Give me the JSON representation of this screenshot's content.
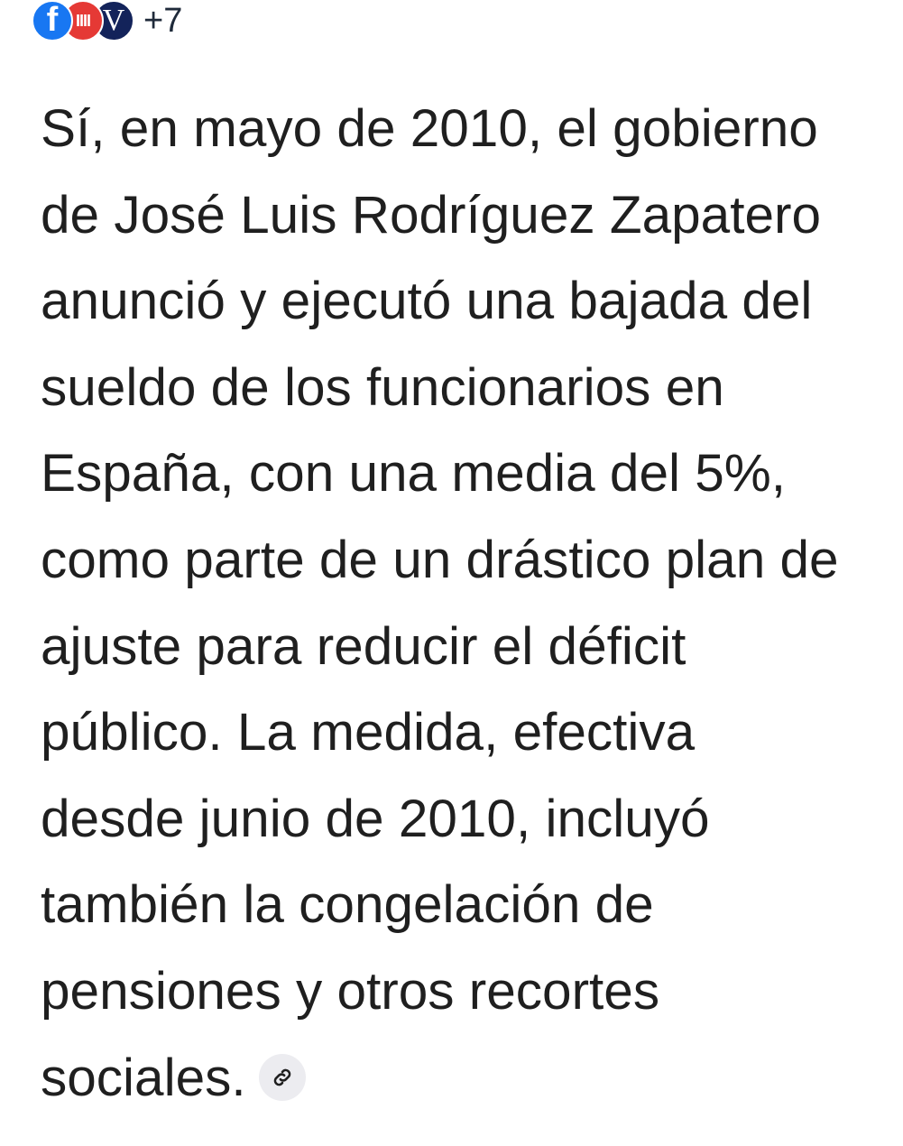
{
  "sources": {
    "icons": [
      "facebook-icon",
      "red-news-logo-icon",
      "v-news-logo-icon"
    ],
    "more_count": "+7"
  },
  "answer": {
    "lines": [
      "Sí, en mayo de 2010, el gobierno",
      "de José Luis Rodríguez Zapatero",
      "anunció y ejecutó una bajada del",
      "sueldo de los funcionarios en",
      "España, con una media del 5%,",
      "como parte de un drástico plan de",
      "ajuste para reducir el déficit",
      "público. La medida, efectiva",
      "desde junio de 2010, incluyó",
      "también la congelación de",
      "pensiones y otros recortes",
      "sociales."
    ]
  },
  "colors": {
    "text": "#1f1f1f",
    "facebook": "#1877f2",
    "red_logo": "#e53935",
    "navy_logo": "#13235a",
    "link_bg": "#ececf0"
  }
}
